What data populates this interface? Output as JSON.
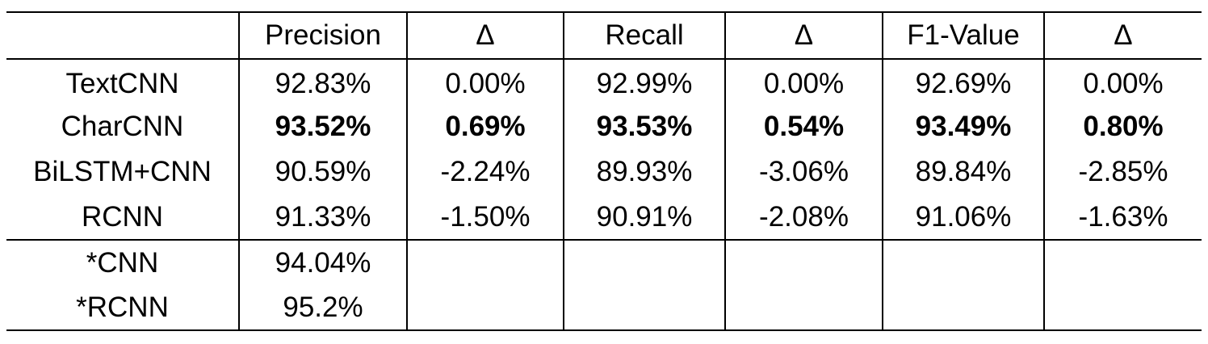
{
  "table": {
    "headers": [
      "",
      "Precision",
      "Δ",
      "Recall",
      "Δ",
      "F1-Value",
      "Δ"
    ],
    "rows": [
      {
        "model": "TextCNN",
        "values": [
          "92.83%",
          "0.00%",
          "92.99%",
          "0.00%",
          "92.69%",
          "0.00%"
        ],
        "bold": false
      },
      {
        "model": "CharCNN",
        "values": [
          "93.52%",
          "0.69%",
          "93.53%",
          "0.54%",
          "93.49%",
          "0.80%"
        ],
        "bold": true
      },
      {
        "model": "BiLSTM+CNN",
        "values": [
          "90.59%",
          "-2.24%",
          "89.93%",
          "-3.06%",
          "89.84%",
          "-2.85%"
        ],
        "bold": false
      },
      {
        "model": "RCNN",
        "values": [
          "91.33%",
          "-1.50%",
          "90.91%",
          "-2.08%",
          "91.06%",
          "-1.63%"
        ],
        "bold": false
      }
    ],
    "starred_rows": [
      {
        "model": "*CNN",
        "values": [
          "94.04%",
          "",
          "",
          "",
          "",
          ""
        ]
      },
      {
        "model": "*RCNN",
        "values": [
          "95.2%",
          "",
          "",
          "",
          "",
          ""
        ]
      }
    ]
  }
}
